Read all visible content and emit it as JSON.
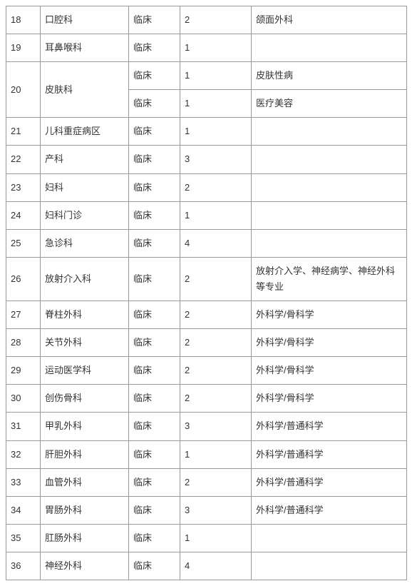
{
  "table": {
    "columns": [
      {
        "key": "id",
        "class": "col-id"
      },
      {
        "key": "dept",
        "class": "col-dept"
      },
      {
        "key": "type",
        "class": "col-type"
      },
      {
        "key": "count",
        "class": "col-count"
      },
      {
        "key": "note",
        "class": "col-note"
      }
    ],
    "rows": [
      {
        "id": "18",
        "dept": "口腔科",
        "type": "临床",
        "count": "2",
        "note": "颌面外科"
      },
      {
        "id": "19",
        "dept": "耳鼻喉科",
        "type": "临床",
        "count": "1",
        "note": ""
      },
      {
        "id": "20",
        "dept": "皮肤科",
        "merged": true,
        "sub": [
          {
            "type": "临床",
            "count": "1",
            "note": "皮肤性病"
          },
          {
            "type": "临床",
            "count": "1",
            "note": "医疗美容"
          }
        ]
      },
      {
        "id": "21",
        "dept": "儿科重症病区",
        "type": "临床",
        "count": "1",
        "note": ""
      },
      {
        "id": "22",
        "dept": "产科",
        "type": "临床",
        "count": "3",
        "note": ""
      },
      {
        "id": "23",
        "dept": "妇科",
        "type": "临床",
        "count": "2",
        "note": ""
      },
      {
        "id": "24",
        "dept": "妇科门诊",
        "type": "临床",
        "count": "1",
        "note": ""
      },
      {
        "id": "25",
        "dept": "急诊科",
        "type": "临床",
        "count": "4",
        "note": ""
      },
      {
        "id": "26",
        "dept": "放射介入科",
        "type": "临床",
        "count": "2",
        "note": "放射介入学、神经病学、神经外科等专业"
      },
      {
        "id": "27",
        "dept": "脊柱外科",
        "type": "临床",
        "count": "2",
        "note": "外科学/骨科学"
      },
      {
        "id": "28",
        "dept": "关节外科",
        "type": "临床",
        "count": "2",
        "note": "外科学/骨科学"
      },
      {
        "id": "29",
        "dept": "运动医学科",
        "type": "临床",
        "count": "2",
        "note": "外科学/骨科学"
      },
      {
        "id": "30",
        "dept": "创伤骨科",
        "type": "临床",
        "count": "2",
        "note": "外科学/骨科学"
      },
      {
        "id": "31",
        "dept": "甲乳外科",
        "type": "临床",
        "count": "3",
        "note": "外科学/普通科学"
      },
      {
        "id": "32",
        "dept": "肝胆外科",
        "type": "临床",
        "count": "1",
        "note": "外科学/普通科学"
      },
      {
        "id": "33",
        "dept": "血管外科",
        "type": "临床",
        "count": "2",
        "note": "外科学/普通科学"
      },
      {
        "id": "34",
        "dept": "胃肠外科",
        "type": "临床",
        "count": "3",
        "note": "外科学/普通科学"
      },
      {
        "id": "35",
        "dept": "肛肠外科",
        "type": "临床",
        "count": "1",
        "note": ""
      },
      {
        "id": "36",
        "dept": "神经外科",
        "type": "临床",
        "count": "4",
        "note": ""
      }
    ],
    "colors": {
      "border": "#999999",
      "text": "#333333",
      "background": "#ffffff"
    },
    "font_size": 13
  }
}
